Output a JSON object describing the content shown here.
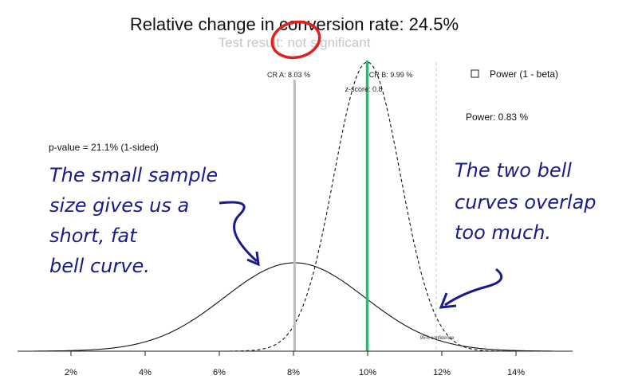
{
  "chart_data": {
    "type": "line",
    "title": "Relative change in conversion rate: 24.5%",
    "subtitle": "Test result: not significant",
    "x_ticks": [
      "2%",
      "4%",
      "6%",
      "8%",
      "10%",
      "12%",
      "14%"
    ],
    "x_tick_values": [
      2,
      4,
      6,
      8,
      10,
      12,
      14
    ],
    "xlim": [
      1,
      15
    ],
    "series": [
      {
        "key": "A",
        "mean": 8.03,
        "sd": 1.9,
        "style": "solid"
      },
      {
        "key": "B",
        "mean": 9.99,
        "sd": 0.9,
        "style": "dashed"
      }
    ],
    "vlines": [
      {
        "x": 8.03,
        "color": "#bbbbbb",
        "label": "CR A: 8.03 %"
      },
      {
        "x": 9.99,
        "color": "#1dbf73",
        "label": "CR B: 9.99 %"
      },
      {
        "x": 11.85,
        "color": "#cccccc",
        "label": "95% confidence"
      }
    ],
    "z_score_label": "z-score: 0.8",
    "p_value_label": "p-value = 21.1% (1-sided)",
    "legend": {
      "entry": "Power (1 - beta)",
      "placement": "top-right"
    },
    "power_label": "Power:  0.83 %",
    "colors": {
      "accent_green": "#1dbf73",
      "circle_red": "#e02020",
      "annotation_blue": "#1a1a8c"
    }
  },
  "annotations": {
    "left": [
      "The small sample",
      "size gives us a",
      "short, fat",
      "bell curve."
    ],
    "right": [
      "The two bell",
      "curves overlap",
      "too much."
    ]
  }
}
